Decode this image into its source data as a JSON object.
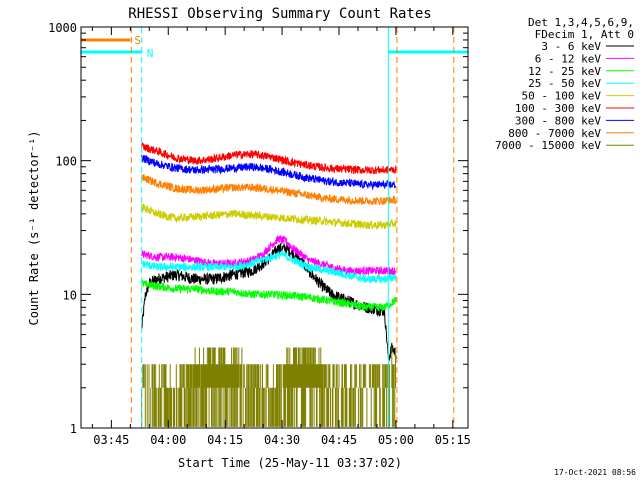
{
  "chart_data": {
    "type": "line",
    "title": "RHESSI Observing Summary Count Rates",
    "xlabel": "Start Time (25-May-11 03:37:02)",
    "ylabel": "Count Rate (s⁻¹ detector⁻¹)",
    "yscale": "log",
    "ylim": [
      1,
      1000
    ],
    "xlim_minutes": [
      0,
      102
    ],
    "x_ticks": [
      {
        "minute": 8,
        "label": "03:45"
      },
      {
        "minute": 23,
        "label": "04:00"
      },
      {
        "minute": 38,
        "label": "04:15"
      },
      {
        "minute": 53,
        "label": "04:30"
      },
      {
        "minute": 68,
        "label": "04:45"
      },
      {
        "minute": 83,
        "label": "05:00"
      },
      {
        "minute": 98,
        "label": "05:15"
      }
    ],
    "y_ticks": [
      {
        "value": 1,
        "label": "1"
      },
      {
        "value": 10,
        "label": "10"
      },
      {
        "value": 100,
        "label": "100"
      },
      {
        "value": 1000,
        "label": "1000"
      }
    ],
    "legend_header": [
      "Det 1,3,4,5,6,9,",
      "FDecim 1, Att 0"
    ],
    "series": [
      {
        "name": "3 - 6 keV",
        "color": "#000000",
        "x": [
          16,
          17,
          18,
          20,
          25,
          30,
          35,
          40,
          45,
          48,
          50,
          52,
          54,
          56,
          58,
          60,
          63,
          66,
          70,
          75,
          80,
          81,
          82,
          83
        ],
        "y": [
          5.5,
          10,
          12,
          13,
          14,
          13,
          13,
          14,
          15,
          17,
          19,
          22,
          22,
          20,
          18,
          15,
          12,
          10,
          9,
          8,
          7.5,
          3.3,
          4,
          3.6
        ]
      },
      {
        "name": "6 - 12 keV",
        "color": "#ff00ff",
        "x": [
          16,
          20,
          25,
          30,
          35,
          40,
          45,
          48,
          50,
          52,
          54,
          56,
          58,
          60,
          63,
          66,
          70,
          75,
          80,
          83
        ],
        "y": [
          20,
          19,
          19,
          18,
          17,
          17,
          18,
          20,
          23,
          26,
          25,
          22,
          20,
          18,
          17,
          16,
          15,
          15,
          15,
          15
        ]
      },
      {
        "name": "12 - 25 keV",
        "color": "#00ff00",
        "x": [
          16,
          20,
          25,
          30,
          35,
          40,
          45,
          50,
          55,
          60,
          65,
          70,
          75,
          80,
          83
        ],
        "y": [
          12,
          11.5,
          11,
          11,
          10.5,
          10.5,
          10,
          10,
          9.8,
          9.5,
          9,
          8.5,
          8,
          8,
          9
        ]
      },
      {
        "name": "25 - 50 keV",
        "color": "#00ffff",
        "x": [
          16,
          20,
          25,
          30,
          35,
          40,
          45,
          50,
          53,
          56,
          60,
          65,
          70,
          75,
          80,
          83
        ],
        "y": [
          17,
          16,
          16,
          16,
          16,
          16,
          17,
          19,
          20,
          18,
          16,
          15,
          14,
          13,
          13,
          13.5
        ]
      },
      {
        "name": "50 - 100 keV",
        "color": "#cccc00",
        "x": [
          16,
          20,
          25,
          30,
          35,
          40,
          45,
          50,
          55,
          60,
          65,
          70,
          75,
          80,
          83
        ],
        "y": [
          45,
          40,
          37,
          38,
          39,
          40,
          39,
          38,
          37,
          36,
          35,
          34,
          33,
          33,
          34
        ]
      },
      {
        "name": "100 - 300 keV",
        "color": "#ff0000",
        "x": [
          16,
          20,
          25,
          30,
          35,
          40,
          45,
          50,
          55,
          60,
          65,
          70,
          75,
          80,
          83
        ],
        "y": [
          128,
          118,
          105,
          100,
          103,
          110,
          112,
          107,
          98,
          92,
          88,
          86,
          85,
          85,
          86
        ]
      },
      {
        "name": "300 - 800 keV",
        "color": "#0000ff",
        "x": [
          16,
          20,
          25,
          30,
          35,
          40,
          45,
          50,
          55,
          60,
          65,
          70,
          75,
          80,
          83
        ],
        "y": [
          105,
          95,
          88,
          85,
          86,
          88,
          90,
          86,
          80,
          74,
          70,
          68,
          66,
          66,
          66
        ]
      },
      {
        "name": "800 - 7000 keV",
        "color": "#ff8000",
        "x": [
          16,
          20,
          25,
          30,
          35,
          40,
          45,
          50,
          55,
          60,
          65,
          70,
          75,
          80,
          83
        ],
        "y": [
          75,
          68,
          62,
          60,
          61,
          63,
          63,
          61,
          58,
          55,
          52,
          51,
          50,
          50,
          51
        ]
      },
      {
        "name": "7000 - 15000 keV",
        "color": "#808000",
        "x": [
          16,
          25,
          30,
          35,
          40,
          45,
          50,
          55,
          60,
          65,
          70,
          75,
          80,
          83
        ],
        "y": [
          2,
          2,
          2.7,
          3,
          3.2,
          2,
          2,
          3,
          3.5,
          2.2,
          2,
          2,
          2,
          3
        ]
      }
    ],
    "markers": {
      "saa": {
        "label": "S",
        "color": "#ff8000",
        "value": 800,
        "x_start": 0,
        "x_end": 13,
        "line_x": [
          13,
          83,
          98
        ]
      },
      "night": {
        "label": "N",
        "color": "#00ffff",
        "value": 650,
        "x_start": 0,
        "x_end": 16,
        "x_start2": 81,
        "x_end2": 102,
        "line_x": [
          0,
          16,
          81
        ]
      }
    }
  },
  "timestamp": "17-Oct-2021 08:56"
}
